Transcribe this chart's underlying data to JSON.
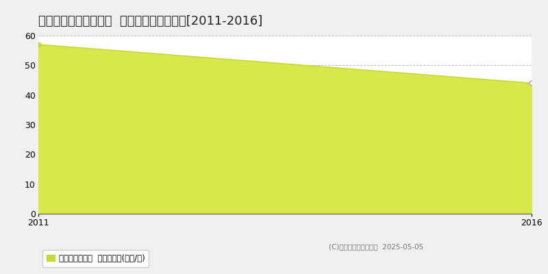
{
  "title": "生駒郡斑鳩町法隆寺南  マンション価格推移[2011-2016]",
  "x_values": [
    2011,
    2016
  ],
  "y_values": [
    57,
    44
  ],
  "ylim": [
    0,
    60
  ],
  "yticks": [
    0,
    10,
    20,
    30,
    40,
    50,
    60
  ],
  "xlim": [
    2011,
    2016
  ],
  "xticks": [
    2011,
    2016
  ],
  "line_color": "#c8d936",
  "fill_color": "#d6e84a",
  "fill_alpha": 1.0,
  "marker_color_last": "white",
  "marker_edge_color": "#aaaaaa",
  "marker_size": 5,
  "grid_color": "#bbbbbb",
  "grid_style": "--",
  "plot_bg_color": "#ffffff",
  "fig_bg_color": "#f0f0f0",
  "legend_label": "マンション価格  平均坪単価(万円/坪)",
  "legend_square_color": "#c8d936",
  "copyright_text": "(C)土地価格ドットコム  2025-05-05",
  "title_fontsize": 13,
  "axis_fontsize": 9,
  "legend_fontsize": 8.5,
  "copyright_fontsize": 7.5
}
